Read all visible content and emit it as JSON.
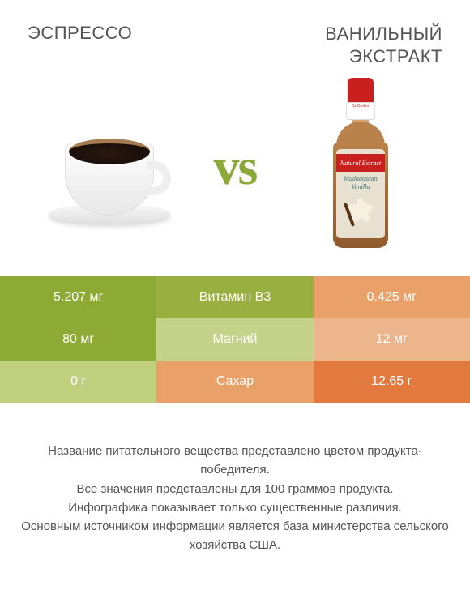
{
  "header": {
    "left_title": "ЭСПРЕССО",
    "right_title_line1": "ВАНИЛЬНЫЙ",
    "right_title_line2": "ЭКСТРАКТ"
  },
  "vs_label": "vs",
  "bottle": {
    "neck_brand": "Dr.Oetker",
    "band_text": "Natural Extract",
    "label_line1": "Madagascan",
    "label_line2": "Vanilla"
  },
  "colors": {
    "win_green": "#8caa34",
    "lose_green": "#c0d07e",
    "label_green_dark": "#99b040",
    "label_green_light": "#c5d38a",
    "win_orange": "#e27a3f",
    "lose_orange": "#edb58c",
    "label_orange": "#e9a069",
    "vs_text": "#8ba838"
  },
  "table": {
    "rows": [
      {
        "nutrient": "Витамин B3",
        "left_value": "5.207 мг",
        "right_value": "0.425 мг",
        "winner": "left",
        "left_bg": "#8caa34",
        "mid_bg": "#99b040",
        "right_bg": "#e9a069"
      },
      {
        "nutrient": "Магний",
        "left_value": "80 мг",
        "right_value": "12 мг",
        "winner": "left",
        "left_bg": "#8caa34",
        "mid_bg": "#c5d38a",
        "right_bg": "#edb58c"
      },
      {
        "nutrient": "Сахар",
        "left_value": "0 г",
        "right_value": "12.65 г",
        "winner": "right",
        "left_bg": "#c0d07e",
        "mid_bg": "#e9a069",
        "right_bg": "#e27a3f"
      }
    ]
  },
  "footer": {
    "line1": "Название питательного вещества представлено цветом продукта-победителя.",
    "line2": "Все значения представлены для 100 граммов продукта.",
    "line3": "Инфографика показывает только существенные различия.",
    "line4": "Основным источником информации является база министерства сельского хозяйства США."
  }
}
